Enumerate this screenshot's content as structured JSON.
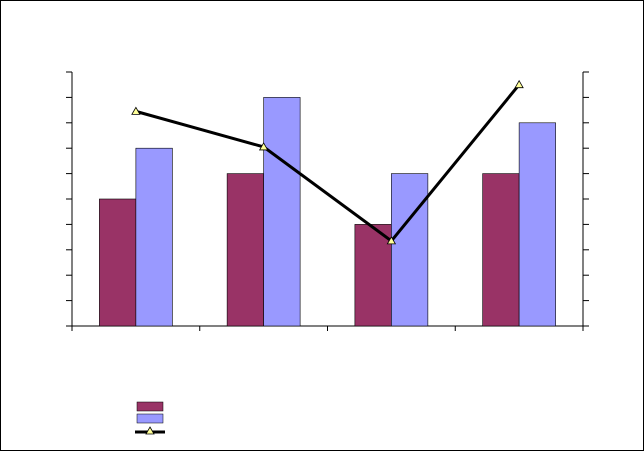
{
  "chart_data": {
    "type": "bar-line",
    "categories": [
      null,
      null,
      null,
      null
    ],
    "series": [
      {
        "type": "bar",
        "color": "#993366",
        "values": [
          5,
          6,
          4,
          6
        ]
      },
      {
        "type": "bar",
        "color": "#9999ff",
        "values": [
          7,
          9,
          6,
          8
        ]
      },
      {
        "type": "line",
        "axis": "y2",
        "color": "#000000",
        "marker_color": "#ffff99",
        "values": [
          8.45,
          7.05,
          3.35,
          9.5
        ]
      }
    ],
    "ylim": [
      0,
      10
    ],
    "yticks": [
      0,
      1,
      2,
      3,
      4,
      5,
      6,
      7,
      8,
      9,
      10
    ],
    "y2lim": [
      0,
      10
    ],
    "y2ticks": [
      0,
      1,
      2,
      3,
      4,
      5,
      6,
      7,
      8,
      9,
      10
    ],
    "grid": false
  }
}
